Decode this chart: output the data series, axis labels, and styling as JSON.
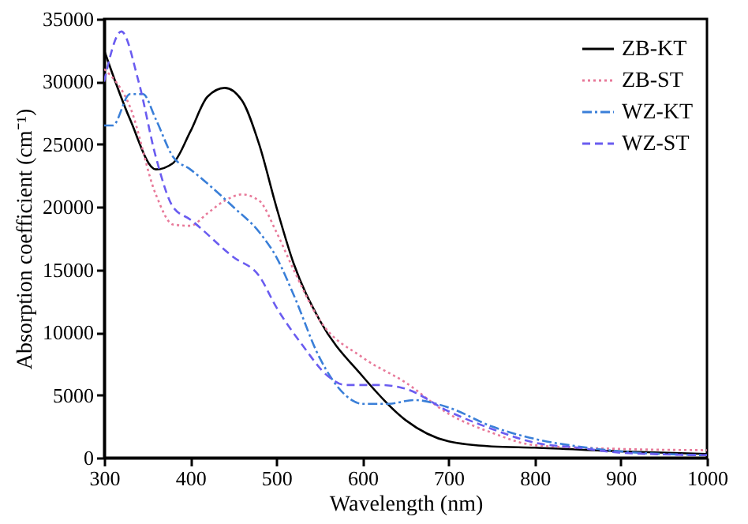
{
  "chart_data": {
    "type": "line",
    "xlabel": "Wavelength (nm)",
    "ylabel": "Absorption coefficient (cm⁻¹)",
    "xlim": [
      300,
      1000
    ],
    "xticks": [
      300,
      400,
      500,
      600,
      700,
      800,
      900,
      1000
    ],
    "ylim": [
      0,
      35000
    ],
    "yticks": [
      0,
      5000,
      10000,
      15000,
      20000,
      25000,
      30000,
      35000
    ],
    "grid": false,
    "legend": "top right",
    "series": [
      {
        "name": "ZB-KT",
        "color": "#000000",
        "line_style": "solid",
        "x": [
          300,
          330,
          360,
          380,
          400,
          420,
          440,
          460,
          480,
          500,
          520,
          550,
          600,
          650,
          700,
          750,
          800,
          900,
          1000
        ],
        "values": [
          32500,
          27000,
          23000,
          23500,
          26000,
          28800,
          29500,
          28500,
          25000,
          20000,
          15500,
          11000,
          6500,
          3000,
          1300,
          900,
          800,
          500,
          300
        ]
      },
      {
        "name": "ZB-ST",
        "color": "#e87a9a",
        "line_style": "dotted",
        "x": [
          300,
          330,
          360,
          380,
          400,
          420,
          440,
          460,
          480,
          500,
          520,
          550,
          600,
          650,
          700,
          750,
          800,
          900,
          1000
        ],
        "values": [
          31000,
          28000,
          21000,
          18600,
          18500,
          19500,
          20500,
          21000,
          20500,
          18000,
          15000,
          11000,
          8000,
          6000,
          3500,
          2000,
          1000,
          700,
          600
        ]
      },
      {
        "name": "WZ-KT",
        "color": "#3a7fd8",
        "line_style": "dashdot",
        "x": [
          300,
          310,
          330,
          345,
          360,
          380,
          400,
          450,
          480,
          500,
          520,
          550,
          580,
          600,
          630,
          660,
          700,
          750,
          800,
          850,
          900,
          1000
        ],
        "values": [
          26500,
          26500,
          29000,
          29000,
          27000,
          24000,
          23000,
          20000,
          18000,
          16000,
          13000,
          8000,
          5000,
          4300,
          4300,
          4600,
          4000,
          2500,
          1500,
          900,
          500,
          200
        ]
      },
      {
        "name": "WZ-ST",
        "color": "#6a5cf0",
        "line_style": "dashed",
        "x": [
          300,
          320,
          340,
          360,
          380,
          400,
          450,
          480,
          500,
          530,
          560,
          580,
          620,
          650,
          700,
          750,
          800,
          850,
          900,
          1000
        ],
        "values": [
          30000,
          34000,
          30000,
          24000,
          20000,
          19000,
          16000,
          14500,
          12000,
          9000,
          6500,
          5800,
          5800,
          5500,
          3700,
          2300,
          1200,
          800,
          400,
          200
        ]
      }
    ]
  }
}
